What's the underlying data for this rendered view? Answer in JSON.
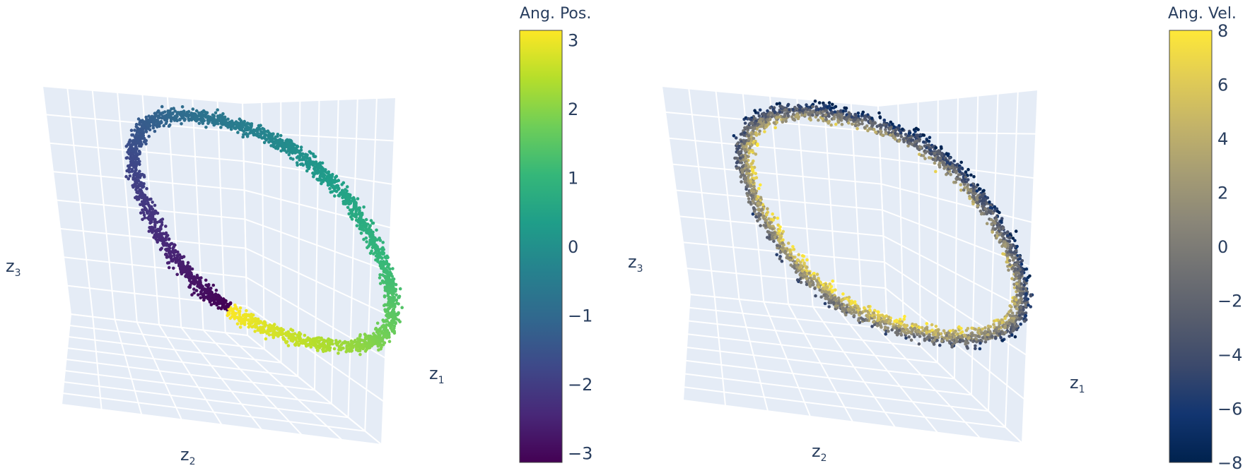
{
  "chart_data": [
    {
      "type": "scatter3d",
      "axes": {
        "x": "z1",
        "y": "z2",
        "z": "z3"
      },
      "axis_labels": {
        "x_main": "z",
        "x_sub": "1",
        "y_main": "z",
        "y_sub": "2",
        "z_main": "z",
        "z_sub": "3"
      },
      "color_variable": "Ang. Pos.",
      "colorscale": "viridis",
      "colorbar": {
        "title": "Ang. Pos.",
        "range": [
          -3.14,
          3.14
        ],
        "tick_values": [
          -3,
          -2,
          -1,
          0,
          1,
          2,
          3
        ],
        "tick_labels": [
          "−3",
          "−2",
          "−1",
          "0",
          "1",
          "2",
          "3"
        ]
      },
      "grid": true,
      "background": "#e5ecf6",
      "shape": "closed ring (limit cycle) in 3D latent space"
    },
    {
      "type": "scatter3d",
      "axes": {
        "x": "z1",
        "y": "z2",
        "z": "z3"
      },
      "axis_labels": {
        "x_main": "z",
        "x_sub": "1",
        "y_main": "z",
        "y_sub": "2",
        "z_main": "z",
        "z_sub": "3"
      },
      "color_variable": "Ang. Vel.",
      "colorscale": "cividis",
      "colorbar": {
        "title": "Ang. Vel.",
        "range": [
          -8,
          8
        ],
        "tick_values": [
          -8,
          -6,
          -4,
          -2,
          0,
          2,
          4,
          6,
          8
        ],
        "tick_labels": [
          "−8",
          "−6",
          "−4",
          "−2",
          "0",
          "2",
          "4",
          "6",
          "8"
        ]
      },
      "grid": true,
      "background": "#e5ecf6",
      "shape": "closed ring (limit cycle) in 3D latent space"
    }
  ],
  "colors": {
    "pane_bg": "#e5ecf6",
    "grid": "#ffffff",
    "text": "#2a3f5f",
    "viridis": [
      "#440154",
      "#482878",
      "#3e4989",
      "#31688e",
      "#26828e",
      "#1f9e89",
      "#35b779",
      "#6ece58",
      "#b5de2b",
      "#fde725"
    ],
    "cividis": [
      "#00224e",
      "#123570",
      "#3b496c",
      "#575d6d",
      "#707173",
      "#8a8678",
      "#a59c74",
      "#c3b369",
      "#e1cc55",
      "#fee838"
    ]
  }
}
